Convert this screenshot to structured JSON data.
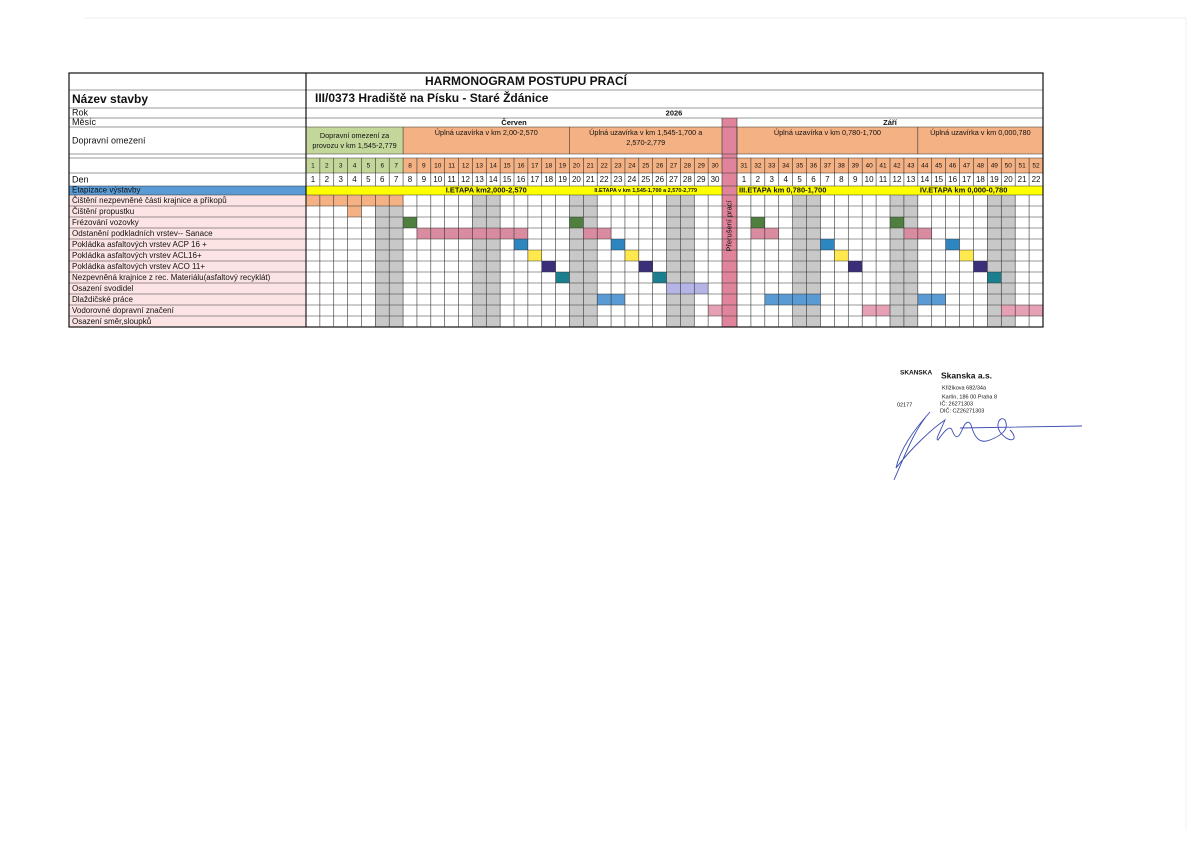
{
  "header": {
    "title": "HARMONOGRAM POSTUPU PRACÍ",
    "name_label": "Název stavby",
    "name": "III/0373 Hradiště na Písku - Staré Ždánice",
    "year_label": "Rok",
    "year": "2026",
    "month_label": "Měsíc",
    "months": [
      {
        "name": "Červen",
        "from": 1,
        "to": 30
      },
      {
        "name": "Září",
        "from": 31,
        "to": 52
      }
    ],
    "traffic_label": "Dopravní omezení",
    "traffic": [
      {
        "lines": [
          "Dopravní omezení za",
          "provozu v km  1,545-2,779"
        ],
        "from": 1,
        "to": 7,
        "color": "#c4d79b"
      },
      {
        "lines": [
          "Úplná uzavírka v km 2,00-2,570"
        ],
        "from": 8,
        "to": 19,
        "color": "#f4b183"
      },
      {
        "lines": [
          "Úplná uzavírka v km 1,545-1,700 a",
          "2,570-2,779"
        ],
        "from": 20,
        "to": 30,
        "color": "#f4b183"
      },
      {
        "lines": [
          "Úplná uzavírka v km 0,780-1,700"
        ],
        "from": 31,
        "to": 43,
        "color": "#f4b183"
      },
      {
        "lines": [
          "Úplná uzavírka v km 0,000,780"
        ],
        "from": 44,
        "to": 52,
        "color": "#f4b183"
      }
    ],
    "break_label": "Přerušení prací",
    "day_label": "Den"
  },
  "columns": {
    "sequence": [
      1,
      2,
      3,
      4,
      5,
      6,
      7,
      8,
      9,
      10,
      11,
      12,
      13,
      14,
      15,
      16,
      17,
      18,
      19,
      20,
      21,
      22,
      23,
      24,
      25,
      26,
      27,
      28,
      29,
      30,
      31,
      32,
      33,
      34,
      35,
      36,
      37,
      38,
      39,
      40,
      41,
      42,
      43,
      44,
      45,
      46,
      47,
      48,
      49,
      50,
      51,
      52
    ],
    "days": [
      1,
      2,
      3,
      4,
      5,
      6,
      7,
      8,
      9,
      10,
      11,
      12,
      13,
      14,
      15,
      16,
      17,
      18,
      19,
      20,
      21,
      22,
      23,
      24,
      25,
      26,
      27,
      28,
      29,
      30,
      1,
      2,
      3,
      4,
      5,
      6,
      7,
      8,
      9,
      10,
      11,
      12,
      13,
      14,
      15,
      16,
      17,
      18,
      19,
      20,
      21,
      22
    ],
    "shaded": [
      6,
      7,
      13,
      14,
      20,
      21,
      27,
      28,
      35,
      36,
      42,
      43,
      49,
      50
    ]
  },
  "stages": {
    "label": "Etapizace výstavby",
    "items": [
      {
        "text": "I.ETAPA   km2,000-2,570",
        "from": 8,
        "to": 19
      },
      {
        "text": "II.ETAPA  v km 1,545-1,700 a 2,570-2,779",
        "from": 20,
        "to": 30
      },
      {
        "text": "III.ETAPA    km 0,780-1,700",
        "from": 31,
        "to": 43
      },
      {
        "text": "IV.ETAPA    km 0,000-0,780",
        "from": 44,
        "to": 52
      }
    ]
  },
  "tasks": [
    {
      "name": "Čištění nezpevněné části krajnice a příkopů",
      "bars": [
        {
          "from": 1,
          "to": 7,
          "color": "#f4b183"
        }
      ]
    },
    {
      "name": "Čištění propustku",
      "bars": [
        {
          "from": 4,
          "to": 4,
          "color": "#f4b183"
        }
      ]
    },
    {
      "name": "Frézování vozovky",
      "bars": [
        {
          "from": 8,
          "to": 8,
          "color": "#4f7f3f"
        },
        {
          "from": 20,
          "to": 20,
          "color": "#4f7f3f"
        },
        {
          "from": 32,
          "to": 32,
          "color": "#4f7f3f"
        },
        {
          "from": 42,
          "to": 42,
          "color": "#4f7f3f"
        }
      ]
    },
    {
      "name": "Odstanění podkladních vrstev-- Sanace",
      "bars": [
        {
          "from": 9,
          "to": 16,
          "color": "#d98c9f"
        },
        {
          "from": 21,
          "to": 22,
          "color": "#d98c9f"
        },
        {
          "from": 32,
          "to": 33,
          "color": "#d98c9f"
        },
        {
          "from": 43,
          "to": 44,
          "color": "#d98c9f"
        }
      ]
    },
    {
      "name": "Pokládka asfaltových vrstev ACP 16  +",
      "bars": [
        {
          "from": 16,
          "to": 16,
          "color": "#2e86c1"
        },
        {
          "from": 23,
          "to": 23,
          "color": "#2e86c1"
        },
        {
          "from": 37,
          "to": 37,
          "color": "#2e86c1"
        },
        {
          "from": 46,
          "to": 46,
          "color": "#2e86c1"
        }
      ]
    },
    {
      "name": "Pokládka asfaltových vrstev ACL16+",
      "bars": [
        {
          "from": 17,
          "to": 17,
          "color": "#ffe94d"
        },
        {
          "from": 24,
          "to": 24,
          "color": "#ffe94d"
        },
        {
          "from": 38,
          "to": 38,
          "color": "#ffe94d"
        },
        {
          "from": 47,
          "to": 47,
          "color": "#ffe94d"
        }
      ]
    },
    {
      "name": "Pokládka asfaltových vrstev ACO 11+",
      "bars": [
        {
          "from": 18,
          "to": 18,
          "color": "#3b2f7a"
        },
        {
          "from": 25,
          "to": 25,
          "color": "#3b2f7a"
        },
        {
          "from": 39,
          "to": 39,
          "color": "#3b2f7a"
        },
        {
          "from": 48,
          "to": 48,
          "color": "#3b2f7a"
        }
      ]
    },
    {
      "name": "Nezpevněná krajnice z rec. Materiálu(asfaltový recyklát)",
      "bars": [
        {
          "from": 19,
          "to": 19,
          "color": "#1b7f8f"
        },
        {
          "from": 26,
          "to": 26,
          "color": "#1b7f8f"
        },
        {
          "from": 49,
          "to": 49,
          "color": "#1b7f8f"
        }
      ]
    },
    {
      "name": "Osazení svodidel",
      "bars": [
        {
          "from": 27,
          "to": 29,
          "color": "#b4b4e6"
        }
      ]
    },
    {
      "name": "Dlaždičské práce",
      "bars": [
        {
          "from": 22,
          "to": 23,
          "color": "#5b9bd5"
        },
        {
          "from": 33,
          "to": 36,
          "color": "#5b9bd5"
        },
        {
          "from": 44,
          "to": 45,
          "color": "#5b9bd5"
        }
      ]
    },
    {
      "name": "Vodorovné dopravní značení",
      "bars": [
        {
          "from": 30,
          "to": 30,
          "color": "#e6a0b4"
        },
        {
          "from": 40,
          "to": 41,
          "color": "#e6a0b4"
        },
        {
          "from": 50,
          "to": 52,
          "color": "#e6a0b4"
        }
      ]
    },
    {
      "name": "Osazení směr,sloupků",
      "bars": []
    }
  ],
  "stamp": {
    "logo": "SKANSKA",
    "company": "Skanska a.s.",
    "lines": [
      "Křižíkova 682/34a",
      "Karlín, 186 00 Praha 8",
      "IČ: 26271303",
      "DIČ: CZ26271303"
    ],
    "code": "02177"
  }
}
